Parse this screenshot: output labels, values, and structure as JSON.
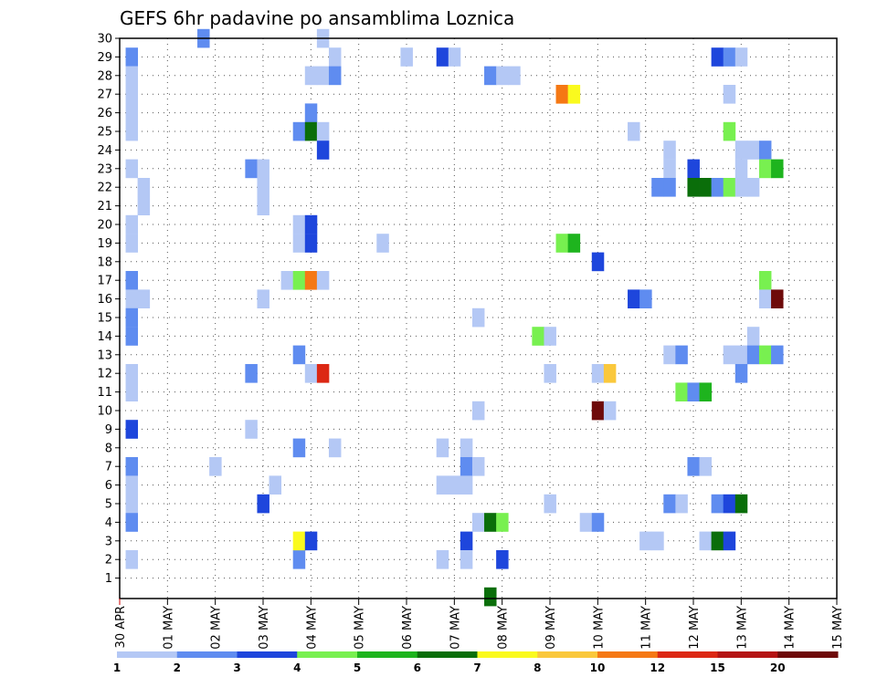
{
  "chart_data": {
    "type": "heatmap",
    "title": "GEFS 6hr padavine po ansamblima Loznica",
    "y_tick_labels": [
      "1",
      "2",
      "3",
      "4",
      "5",
      "6",
      "7",
      "8",
      "9",
      "10",
      "11",
      "12",
      "13",
      "14",
      "15",
      "16",
      "17",
      "18",
      "19",
      "20",
      "21",
      "22",
      "23",
      "24",
      "25",
      "26",
      "27",
      "28",
      "29",
      "30"
    ],
    "x_tick_labels": [
      "30 APR",
      "01 MAY",
      "02 MAY",
      "03 MAY",
      "04 MAY",
      "05 MAY",
      "06 MAY",
      "07 MAY",
      "08 MAY",
      "09 MAY",
      "10 MAY",
      "11 MAY",
      "12 MAY",
      "13 MAY",
      "14 MAY",
      "15 MAY"
    ],
    "grid": true,
    "legend_placement": "bottom",
    "colorbar": {
      "tick_labels": [
        "1",
        "2",
        "3",
        "4",
        "5",
        "6",
        "7",
        "8",
        "10",
        "12",
        "15",
        "20"
      ],
      "colors": [
        "#b4c8f5",
        "#5f8cf0",
        "#1e46dc",
        "#78f050",
        "#1eb41e",
        "#0a6e0a",
        "#fafa1e",
        "#fac83c",
        "#f57814",
        "#dc2814",
        "#b41414",
        "#6e0a0a"
      ]
    },
    "x_unit": "6-hour step (4 per day), x=0 at 30 APR 00",
    "cells": [
      {
        "x": 1,
        "y": 29,
        "c": 1
      },
      {
        "x": 1,
        "y": 28,
        "c": 0
      },
      {
        "x": 1,
        "y": 27,
        "c": 0
      },
      {
        "x": 1,
        "y": 26,
        "c": 0
      },
      {
        "x": 1,
        "y": 25,
        "c": 0
      },
      {
        "x": 1,
        "y": 23,
        "c": 0
      },
      {
        "x": 2,
        "y": 22,
        "c": 0
      },
      {
        "x": 2,
        "y": 21,
        "c": 0
      },
      {
        "x": 1,
        "y": 20,
        "c": 0
      },
      {
        "x": 1,
        "y": 19,
        "c": 0
      },
      {
        "x": 1,
        "y": 17,
        "c": 1
      },
      {
        "x": 1,
        "y": 16,
        "c": 0
      },
      {
        "x": 2,
        "y": 16,
        "c": 0
      },
      {
        "x": 1,
        "y": 15,
        "c": 1
      },
      {
        "x": 1,
        "y": 14,
        "c": 1
      },
      {
        "x": 1,
        "y": 12,
        "c": 0
      },
      {
        "x": 1,
        "y": 11,
        "c": 0
      },
      {
        "x": 1,
        "y": 9,
        "c": 2
      },
      {
        "x": 1,
        "y": 7,
        "c": 1
      },
      {
        "x": 1,
        "y": 6,
        "c": 0
      },
      {
        "x": 1,
        "y": 5,
        "c": 0
      },
      {
        "x": 1,
        "y": 4,
        "c": 1
      },
      {
        "x": 1,
        "y": 2,
        "c": 0
      },
      {
        "x": 7,
        "y": 30,
        "c": 1
      },
      {
        "x": 8,
        "y": 7,
        "c": 0
      },
      {
        "x": 11,
        "y": 23,
        "c": 1
      },
      {
        "x": 12,
        "y": 23,
        "c": 0
      },
      {
        "x": 12,
        "y": 22,
        "c": 0
      },
      {
        "x": 12,
        "y": 21,
        "c": 0
      },
      {
        "x": 12,
        "y": 16,
        "c": 0
      },
      {
        "x": 11,
        "y": 12,
        "c": 1
      },
      {
        "x": 11,
        "y": 9,
        "c": 0
      },
      {
        "x": 12,
        "y": 5,
        "c": 2
      },
      {
        "x": 13,
        "y": 6,
        "c": 0
      },
      {
        "x": 14,
        "y": 17,
        "c": 0
      },
      {
        "x": 15,
        "y": 17,
        "c": 3
      },
      {
        "x": 15,
        "y": 20,
        "c": 0
      },
      {
        "x": 15,
        "y": 19,
        "c": 0
      },
      {
        "x": 15,
        "y": 25,
        "c": 1
      },
      {
        "x": 15,
        "y": 13,
        "c": 1
      },
      {
        "x": 15,
        "y": 8,
        "c": 1
      },
      {
        "x": 15,
        "y": 2,
        "c": 1
      },
      {
        "x": 15,
        "y": 3,
        "c": 6
      },
      {
        "x": 16,
        "y": 28,
        "c": 0
      },
      {
        "x": 16,
        "y": 26,
        "c": 1
      },
      {
        "x": 16,
        "y": 25,
        "c": 5
      },
      {
        "x": 16,
        "y": 20,
        "c": 2
      },
      {
        "x": 16,
        "y": 19,
        "c": 2
      },
      {
        "x": 16,
        "y": 17,
        "c": 8
      },
      {
        "x": 16,
        "y": 12,
        "c": 0
      },
      {
        "x": 16,
        "y": 3,
        "c": 2
      },
      {
        "x": 17,
        "y": 30,
        "c": 0
      },
      {
        "x": 17,
        "y": 28,
        "c": 0
      },
      {
        "x": 17,
        "y": 25,
        "c": 0
      },
      {
        "x": 17,
        "y": 24,
        "c": 2
      },
      {
        "x": 17,
        "y": 17,
        "c": 0
      },
      {
        "x": 17,
        "y": 12,
        "c": 9
      },
      {
        "x": 18,
        "y": 29,
        "c": 0
      },
      {
        "x": 18,
        "y": 28,
        "c": 1
      },
      {
        "x": 18,
        "y": 8,
        "c": 0
      },
      {
        "x": 22,
        "y": 19,
        "c": 0
      },
      {
        "x": 24,
        "y": 29,
        "c": 0
      },
      {
        "x": 27,
        "y": 29,
        "c": 2
      },
      {
        "x": 27,
        "y": 8,
        "c": 0
      },
      {
        "x": 27,
        "y": 6,
        "c": 0
      },
      {
        "x": 27,
        "y": 2,
        "c": 0
      },
      {
        "x": 28,
        "y": 29,
        "c": 0
      },
      {
        "x": 28,
        "y": 6,
        "c": 0
      },
      {
        "x": 29,
        "y": 8,
        "c": 0
      },
      {
        "x": 29,
        "y": 7,
        "c": 1
      },
      {
        "x": 29,
        "y": 6,
        "c": 0
      },
      {
        "x": 29,
        "y": 3,
        "c": 2
      },
      {
        "x": 29,
        "y": 2,
        "c": 0
      },
      {
        "x": 30,
        "y": 15,
        "c": 0
      },
      {
        "x": 30,
        "y": 10,
        "c": 0
      },
      {
        "x": 30,
        "y": 7,
        "c": 0
      },
      {
        "x": 30,
        "y": 4,
        "c": 0
      },
      {
        "x": 31,
        "y": 28,
        "c": 1
      },
      {
        "x": 31,
        "y": 4,
        "c": 5
      },
      {
        "x": 31,
        "y": 0,
        "c": 5
      },
      {
        "x": 32,
        "y": 28,
        "c": 0
      },
      {
        "x": 32,
        "y": 4,
        "c": 3
      },
      {
        "x": 32,
        "y": 2,
        "c": 2
      },
      {
        "x": 33,
        "y": 28,
        "c": 0
      },
      {
        "x": 35,
        "y": 14,
        "c": 3
      },
      {
        "x": 36,
        "y": 14,
        "c": 0
      },
      {
        "x": 36,
        "y": 12,
        "c": 0
      },
      {
        "x": 36,
        "y": 5,
        "c": 0
      },
      {
        "x": 37,
        "y": 27,
        "c": 8
      },
      {
        "x": 37,
        "y": 19,
        "c": 3
      },
      {
        "x": 38,
        "y": 27,
        "c": 6
      },
      {
        "x": 38,
        "y": 19,
        "c": 4
      },
      {
        "x": 39,
        "y": 4,
        "c": 0
      },
      {
        "x": 40,
        "y": 4,
        "c": 1
      },
      {
        "x": 40,
        "y": 18,
        "c": 2
      },
      {
        "x": 40,
        "y": 12,
        "c": 0
      },
      {
        "x": 40,
        "y": 10,
        "c": 11
      },
      {
        "x": 41,
        "y": 12,
        "c": 7
      },
      {
        "x": 41,
        "y": 10,
        "c": 0
      },
      {
        "x": 43,
        "y": 25,
        "c": 0
      },
      {
        "x": 43,
        "y": 16,
        "c": 2
      },
      {
        "x": 44,
        "y": 16,
        "c": 1
      },
      {
        "x": 44,
        "y": 3,
        "c": 0
      },
      {
        "x": 45,
        "y": 3,
        "c": 0
      },
      {
        "x": 46,
        "y": 24,
        "c": 0
      },
      {
        "x": 46,
        "y": 23,
        "c": 0
      },
      {
        "x": 46,
        "y": 13,
        "c": 0
      },
      {
        "x": 46,
        "y": 5,
        "c": 1
      },
      {
        "x": 46,
        "y": 22,
        "c": 1
      },
      {
        "x": 45,
        "y": 22,
        "c": 1
      },
      {
        "x": 47,
        "y": 13,
        "c": 1
      },
      {
        "x": 47,
        "y": 11,
        "c": 3
      },
      {
        "x": 47,
        "y": 5,
        "c": 0
      },
      {
        "x": 48,
        "y": 11,
        "c": 1
      },
      {
        "x": 48,
        "y": 23,
        "c": 2
      },
      {
        "x": 48,
        "y": 22,
        "c": 5
      },
      {
        "x": 48,
        "y": 7,
        "c": 1
      },
      {
        "x": 49,
        "y": 22,
        "c": 5
      },
      {
        "x": 49,
        "y": 11,
        "c": 4
      },
      {
        "x": 49,
        "y": 7,
        "c": 0
      },
      {
        "x": 49,
        "y": 3,
        "c": 0
      },
      {
        "x": 50,
        "y": 22,
        "c": 1
      },
      {
        "x": 50,
        "y": 29,
        "c": 2
      },
      {
        "x": 50,
        "y": 5,
        "c": 1
      },
      {
        "x": 50,
        "y": 3,
        "c": 5
      },
      {
        "x": 51,
        "y": 29,
        "c": 1
      },
      {
        "x": 51,
        "y": 27,
        "c": 0
      },
      {
        "x": 51,
        "y": 25,
        "c": 3
      },
      {
        "x": 51,
        "y": 22,
        "c": 3
      },
      {
        "x": 51,
        "y": 13,
        "c": 0
      },
      {
        "x": 51,
        "y": 5,
        "c": 2
      },
      {
        "x": 51,
        "y": 3,
        "c": 2
      },
      {
        "x": 52,
        "y": 29,
        "c": 0
      },
      {
        "x": 52,
        "y": 24,
        "c": 0
      },
      {
        "x": 52,
        "y": 23,
        "c": 0
      },
      {
        "x": 52,
        "y": 22,
        "c": 0
      },
      {
        "x": 52,
        "y": 13,
        "c": 0
      },
      {
        "x": 52,
        "y": 12,
        "c": 1
      },
      {
        "x": 52,
        "y": 5,
        "c": 5
      },
      {
        "x": 53,
        "y": 24,
        "c": 0
      },
      {
        "x": 53,
        "y": 22,
        "c": 0
      },
      {
        "x": 53,
        "y": 14,
        "c": 0
      },
      {
        "x": 53,
        "y": 13,
        "c": 1
      },
      {
        "x": 54,
        "y": 24,
        "c": 1
      },
      {
        "x": 54,
        "y": 23,
        "c": 3
      },
      {
        "x": 54,
        "y": 17,
        "c": 3
      },
      {
        "x": 54,
        "y": 16,
        "c": 0
      },
      {
        "x": 54,
        "y": 13,
        "c": 3
      },
      {
        "x": 55,
        "y": 23,
        "c": 4
      },
      {
        "x": 55,
        "y": 16,
        "c": 11
      },
      {
        "x": 55,
        "y": 13,
        "c": 1
      }
    ]
  }
}
